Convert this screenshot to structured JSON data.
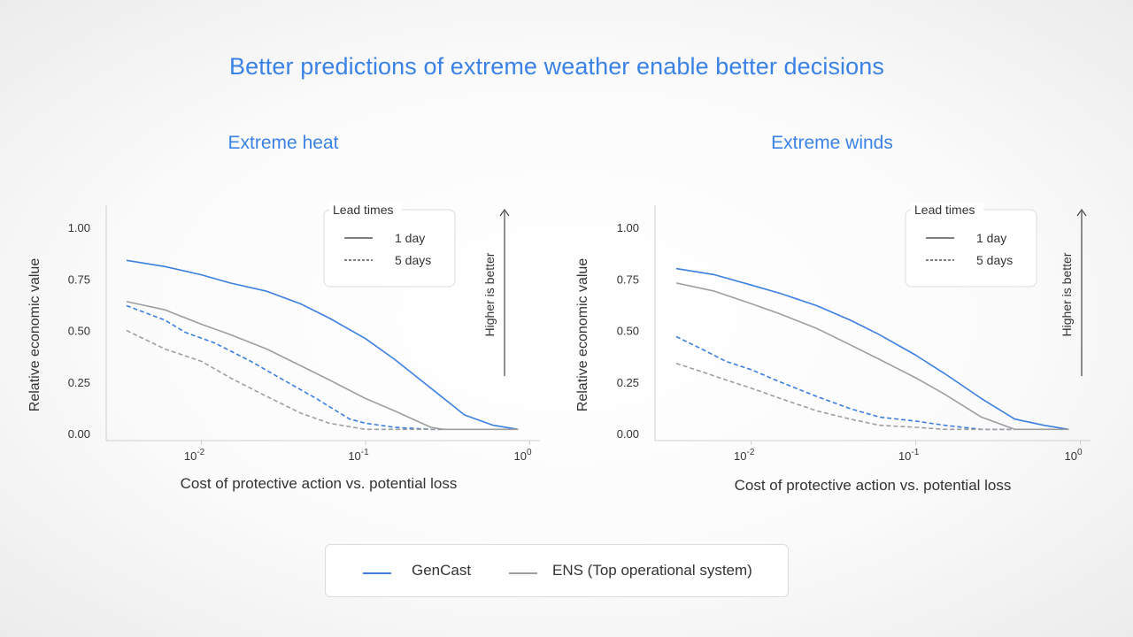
{
  "title": "Better predictions of extreme weather enable better decisions",
  "legend_bottom": {
    "items": [
      {
        "label": "GenCast",
        "color": "#3b7fe0"
      },
      {
        "label": "ENS (Top operational system)",
        "color": "#9e9e9e"
      }
    ]
  },
  "chart_data": [
    {
      "type": "line",
      "title": "Extreme heat",
      "xlabel": "Cost of protective action vs. potential loss",
      "ylabel": "Relative economic value",
      "x_scale": "log",
      "xlim": [
        0.0035,
        0.9
      ],
      "ylim": [
        0,
        1.1
      ],
      "yticks": [
        "0.00",
        "0.25",
        "0.50",
        "0.75",
        "1.00"
      ],
      "xticks": [
        {
          "base": "10",
          "exp": "-2"
        },
        {
          "base": "10",
          "exp": "-1"
        },
        {
          "base": "10",
          "exp": "0"
        }
      ],
      "annotation": "Higher is better",
      "lead_legend": {
        "title": "Lead times",
        "items": [
          {
            "label": "1 day",
            "dash": "solid"
          },
          {
            "label": "5 days",
            "dash": "dashed"
          }
        ]
      },
      "series": [
        {
          "name": "GenCast",
          "lead": "1 day",
          "color": "#3b7fe0",
          "dash": "solid",
          "x": [
            0.0035,
            0.006,
            0.01,
            0.015,
            0.025,
            0.04,
            0.06,
            0.1,
            0.15,
            0.25,
            0.4,
            0.6,
            0.85
          ],
          "y": [
            0.84,
            0.81,
            0.77,
            0.73,
            0.69,
            0.63,
            0.56,
            0.46,
            0.36,
            0.22,
            0.09,
            0.04,
            0.02
          ]
        },
        {
          "name": "ENS (Top operational system)",
          "lead": "1 day",
          "color": "#9e9e9e",
          "dash": "solid",
          "x": [
            0.0035,
            0.006,
            0.01,
            0.015,
            0.025,
            0.04,
            0.06,
            0.1,
            0.15,
            0.25,
            0.3,
            0.85
          ],
          "y": [
            0.64,
            0.6,
            0.53,
            0.48,
            0.41,
            0.33,
            0.26,
            0.17,
            0.11,
            0.03,
            0.02,
            0.02
          ]
        },
        {
          "name": "GenCast",
          "lead": "5 days",
          "color": "#3b7fe0",
          "dash": "dashed",
          "x": [
            0.0035,
            0.006,
            0.008,
            0.012,
            0.02,
            0.03,
            0.05,
            0.08,
            0.1,
            0.15,
            0.25,
            0.3
          ],
          "y": [
            0.62,
            0.55,
            0.49,
            0.44,
            0.35,
            0.27,
            0.17,
            0.07,
            0.05,
            0.03,
            0.02,
            0.02
          ]
        },
        {
          "name": "ENS (Top operational system)",
          "lead": "5 days",
          "color": "#9e9e9e",
          "dash": "dashed",
          "x": [
            0.0035,
            0.006,
            0.01,
            0.015,
            0.025,
            0.04,
            0.06,
            0.1,
            0.15,
            0.3
          ],
          "y": [
            0.5,
            0.41,
            0.35,
            0.27,
            0.18,
            0.1,
            0.05,
            0.02,
            0.02,
            0.02
          ]
        }
      ]
    },
    {
      "type": "line",
      "title": "Extreme winds",
      "xlabel": "Cost of protective action vs. potential loss",
      "ylabel": "Relative economic value",
      "x_scale": "log",
      "xlim": [
        0.0035,
        0.9
      ],
      "ylim": [
        0,
        1.1
      ],
      "yticks": [
        "0.00",
        "0.25",
        "0.50",
        "0.75",
        "1.00"
      ],
      "xticks": [
        {
          "base": "10",
          "exp": "-2"
        },
        {
          "base": "10",
          "exp": "-1"
        },
        {
          "base": "10",
          "exp": "0"
        }
      ],
      "annotation": "Higher is better",
      "lead_legend": {
        "title": "Lead times",
        "items": [
          {
            "label": "1 day",
            "dash": "solid"
          },
          {
            "label": "5 days",
            "dash": "dashed"
          }
        ]
      },
      "series": [
        {
          "name": "GenCast",
          "lead": "1 day",
          "color": "#3b7fe0",
          "dash": "solid",
          "x": [
            0.0035,
            0.006,
            0.01,
            0.015,
            0.025,
            0.04,
            0.06,
            0.1,
            0.15,
            0.25,
            0.4,
            0.6,
            0.85
          ],
          "y": [
            0.8,
            0.77,
            0.72,
            0.68,
            0.62,
            0.55,
            0.48,
            0.38,
            0.29,
            0.17,
            0.07,
            0.04,
            0.02
          ]
        },
        {
          "name": "ENS (Top operational system)",
          "lead": "1 day",
          "color": "#9e9e9e",
          "dash": "solid",
          "x": [
            0.0035,
            0.006,
            0.01,
            0.015,
            0.025,
            0.04,
            0.06,
            0.1,
            0.15,
            0.25,
            0.4,
            0.5,
            0.85
          ],
          "y": [
            0.73,
            0.69,
            0.63,
            0.58,
            0.51,
            0.43,
            0.36,
            0.27,
            0.19,
            0.08,
            0.02,
            0.02,
            0.02
          ]
        },
        {
          "name": "GenCast",
          "lead": "5 days",
          "color": "#3b7fe0",
          "dash": "dashed",
          "x": [
            0.0035,
            0.005,
            0.007,
            0.01,
            0.015,
            0.025,
            0.04,
            0.06,
            0.1,
            0.15,
            0.25,
            0.4
          ],
          "y": [
            0.47,
            0.41,
            0.35,
            0.31,
            0.25,
            0.18,
            0.12,
            0.08,
            0.06,
            0.04,
            0.02,
            0.02
          ]
        },
        {
          "name": "ENS (Top operational system)",
          "lead": "5 days",
          "color": "#9e9e9e",
          "dash": "dashed",
          "x": [
            0.0035,
            0.005,
            0.007,
            0.01,
            0.015,
            0.025,
            0.04,
            0.06,
            0.1,
            0.15,
            0.4
          ],
          "y": [
            0.34,
            0.3,
            0.26,
            0.22,
            0.17,
            0.11,
            0.07,
            0.04,
            0.03,
            0.02,
            0.02
          ]
        }
      ]
    }
  ]
}
